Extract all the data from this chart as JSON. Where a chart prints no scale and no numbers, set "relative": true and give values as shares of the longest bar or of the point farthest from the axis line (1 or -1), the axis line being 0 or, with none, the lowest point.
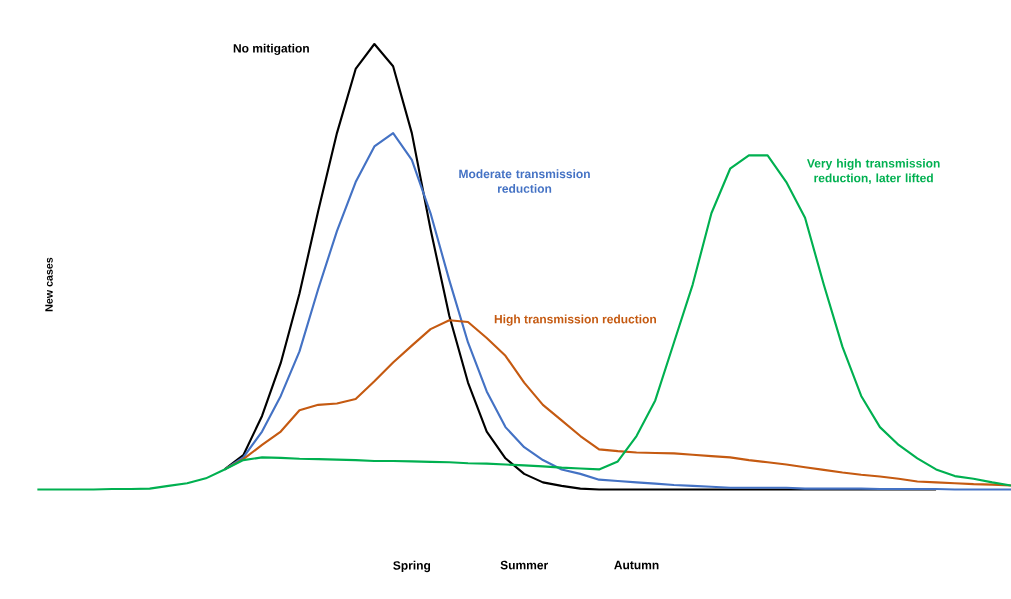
{
  "chart_data": {
    "type": "line",
    "relative": true,
    "ylabel": "New cases",
    "legend": false,
    "marker": "none",
    "line_style": "solid",
    "categories": [
      null,
      null,
      null,
      null,
      null,
      null,
      null,
      null,
      null,
      null,
      null,
      null,
      null,
      null,
      null,
      null,
      null,
      null,
      null,
      null,
      "Spring",
      null,
      null,
      null,
      null,
      null,
      "Summer",
      null,
      null,
      null,
      null,
      null,
      "Autumn",
      null,
      null,
      null,
      null,
      null,
      null,
      null,
      null,
      null,
      null,
      null,
      null,
      null,
      null,
      null,
      null,
      null,
      null,
      null,
      null
    ],
    "series": [
      {
        "name": "No mitigation",
        "color": "#000000",
        "values": [
          null,
          null,
          null,
          null,
          null,
          null,
          null,
          null,
          null,
          null,
          0.045,
          0.077,
          0.165,
          0.284,
          0.44,
          0.625,
          0.8,
          0.944,
          1,
          0.95,
          0.8,
          0.584,
          0.39,
          0.24,
          0.13,
          0.07,
          0.035,
          0.016,
          0.008,
          0.002,
          0,
          0,
          0,
          0,
          0,
          0,
          0,
          0,
          0,
          0,
          0,
          0,
          0,
          0,
          0,
          0,
          0,
          0,
          0,
          null,
          null,
          null,
          null
        ]
      },
      {
        "name": "Moderate transmission reduction",
        "color": "#4472c4",
        "values": [
          null,
          null,
          null,
          null,
          null,
          null,
          null,
          null,
          null,
          null,
          0.045,
          0.072,
          0.13,
          0.21,
          0.31,
          0.45,
          0.58,
          0.69,
          0.77,
          0.8,
          0.74,
          0.62,
          0.47,
          0.33,
          0.22,
          0.14,
          0.095,
          0.066,
          0.045,
          0.035,
          0.022,
          0.019,
          0.016,
          0.013,
          0.01,
          0.008,
          0.006,
          0.004,
          0.004,
          0.004,
          0.004,
          0.002,
          0.002,
          0.002,
          0.002,
          0.001,
          0.001,
          0.001,
          0.001,
          0,
          0,
          0,
          0
        ]
      },
      {
        "name": "High transmission reduction",
        "color": "#c55a11",
        "values": [
          null,
          null,
          null,
          null,
          null,
          null,
          null,
          null,
          null,
          null,
          0.045,
          0.068,
          0.1,
          0.13,
          0.178,
          0.19,
          0.193,
          0.203,
          0.243,
          0.285,
          0.323,
          0.36,
          0.38,
          0.376,
          0.34,
          0.3,
          0.24,
          0.19,
          0.155,
          0.12,
          0.09,
          0.086,
          0.083,
          0.082,
          0.081,
          0.078,
          0.075,
          0.072,
          0.066,
          0.061,
          0.056,
          0.05,
          0.044,
          0.038,
          0.033,
          0.029,
          0.024,
          0.018,
          0.016,
          0.014,
          0.012,
          0.011,
          0.009
        ]
      },
      {
        "name": "Very high transmission reduction, later lifted",
        "color": "#00b050",
        "values": [
          0,
          0,
          0,
          0,
          0.001,
          0.001,
          0.002,
          0.008,
          0.014,
          0.025,
          0.045,
          0.066,
          0.072,
          0.071,
          0.069,
          0.068,
          0.067,
          0.066,
          0.064,
          0.064,
          0.063,
          0.062,
          0.061,
          0.059,
          0.058,
          0.056,
          0.054,
          0.052,
          0.049,
          0.047,
          0.045,
          0.063,
          0.12,
          0.2,
          0.33,
          0.46,
          0.62,
          0.72,
          0.75,
          0.75,
          0.69,
          0.61,
          0.46,
          0.32,
          0.21,
          0.14,
          0.1,
          0.07,
          0.045,
          0.03,
          0.024,
          0.016,
          0.009
        ]
      }
    ]
  }
}
